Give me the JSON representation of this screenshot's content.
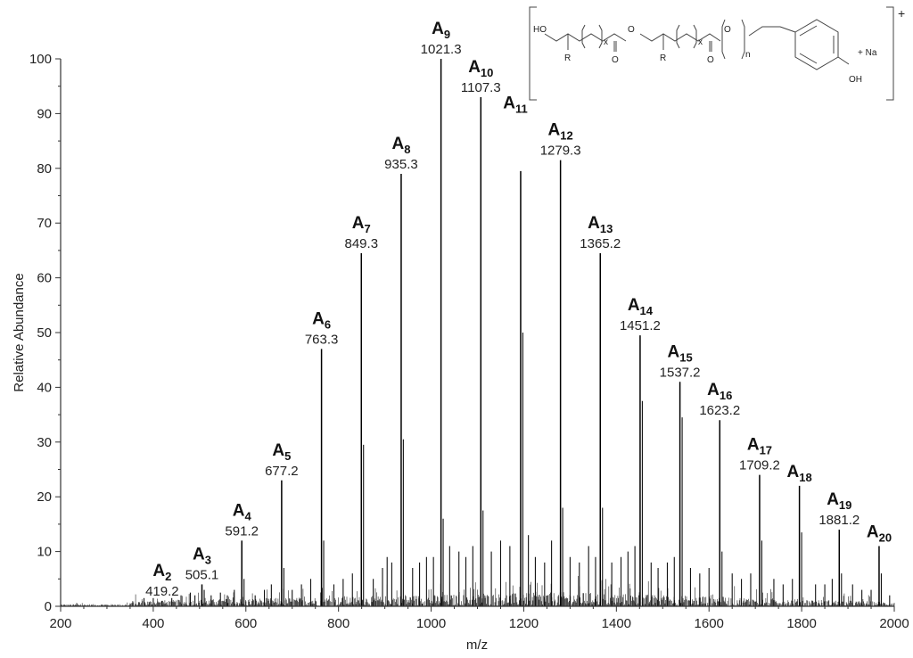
{
  "chart_data": {
    "type": "bar",
    "xlabel": "m/z",
    "ylabel": "Relative Abundance",
    "xlim": [
      200,
      2000
    ],
    "ylim": [
      0,
      100
    ],
    "xticks": [
      200,
      400,
      600,
      800,
      1000,
      1200,
      1400,
      1600,
      1800,
      2000
    ],
    "yticks": [
      0,
      10,
      20,
      30,
      40,
      50,
      60,
      70,
      80,
      90,
      100
    ],
    "grid": false,
    "peaks": [
      {
        "name": "A",
        "sub": "2",
        "mz": 419.2,
        "label": "419.2",
        "y": 1
      },
      {
        "name": "A",
        "sub": "3",
        "mz": 505.1,
        "label": "505.1",
        "y": 4
      },
      {
        "name": "A",
        "sub": "4",
        "mz": 591.2,
        "label": "591.2",
        "y": 12
      },
      {
        "name": "A",
        "sub": "5",
        "mz": 677.2,
        "label": "677.2",
        "y": 23
      },
      {
        "name": "A",
        "sub": "6",
        "mz": 763.3,
        "label": "763.3",
        "y": 47
      },
      {
        "name": "A",
        "sub": "7",
        "mz": 849.3,
        "label": "849.3",
        "y": 64.5
      },
      {
        "name": "A",
        "sub": "8",
        "mz": 935.3,
        "label": "935.3",
        "y": 79
      },
      {
        "name": "A",
        "sub": "9",
        "mz": 1021.3,
        "label": "1021.3",
        "y": 100
      },
      {
        "name": "A",
        "sub": "10",
        "mz": 1107.3,
        "label": "1107.3",
        "y": 93
      },
      {
        "name": "A",
        "sub": "11",
        "mz": 1193.3,
        "label": "",
        "y": 79.5
      },
      {
        "name": "A",
        "sub": "12",
        "mz": 1279.3,
        "label": "1279.3",
        "y": 81.5
      },
      {
        "name": "A",
        "sub": "13",
        "mz": 1365.2,
        "label": "1365.2",
        "y": 64.5
      },
      {
        "name": "A",
        "sub": "14",
        "mz": 1451.2,
        "label": "1451.2",
        "y": 49.5
      },
      {
        "name": "A",
        "sub": "15",
        "mz": 1537.2,
        "label": "1537.2",
        "y": 41
      },
      {
        "name": "A",
        "sub": "16",
        "mz": 1623.2,
        "label": "1623.2",
        "y": 34
      },
      {
        "name": "A",
        "sub": "17",
        "mz": 1709.2,
        "label": "1709.2",
        "y": 24
      },
      {
        "name": "A",
        "sub": "18",
        "mz": 1795.2,
        "label": "",
        "y": 22
      },
      {
        "name": "A",
        "sub": "19",
        "mz": 1881.2,
        "label": "1881.2",
        "y": 14
      },
      {
        "name": "A",
        "sub": "20",
        "mz": 1967.2,
        "label": "",
        "y": 11
      }
    ],
    "minor_peaks": [
      {
        "mz": 380,
        "y": 1.5
      },
      {
        "mz": 400,
        "y": 1.5
      },
      {
        "mz": 440,
        "y": 1.5
      },
      {
        "mz": 460,
        "y": 2
      },
      {
        "mz": 480,
        "y": 2.5
      },
      {
        "mz": 490,
        "y": 2
      },
      {
        "mz": 510,
        "y": 3
      },
      {
        "mz": 525,
        "y": 2
      },
      {
        "mz": 545,
        "y": 2.5
      },
      {
        "mz": 560,
        "y": 2
      },
      {
        "mz": 575,
        "y": 3
      },
      {
        "mz": 596,
        "y": 5
      },
      {
        "mz": 620,
        "y": 2
      },
      {
        "mz": 640,
        "y": 3
      },
      {
        "mz": 655,
        "y": 4
      },
      {
        "mz": 682,
        "y": 7
      },
      {
        "mz": 700,
        "y": 3
      },
      {
        "mz": 720,
        "y": 4
      },
      {
        "mz": 740,
        "y": 5
      },
      {
        "mz": 768,
        "y": 12
      },
      {
        "mz": 790,
        "y": 4
      },
      {
        "mz": 810,
        "y": 5
      },
      {
        "mz": 830,
        "y": 6
      },
      {
        "mz": 854,
        "y": 29.5
      },
      {
        "mz": 875,
        "y": 5
      },
      {
        "mz": 895,
        "y": 7
      },
      {
        "mz": 905,
        "y": 9
      },
      {
        "mz": 915,
        "y": 8
      },
      {
        "mz": 940,
        "y": 30.5
      },
      {
        "mz": 960,
        "y": 7
      },
      {
        "mz": 975,
        "y": 8
      },
      {
        "mz": 990,
        "y": 9
      },
      {
        "mz": 1005,
        "y": 9
      },
      {
        "mz": 1026,
        "y": 16
      },
      {
        "mz": 1040,
        "y": 11
      },
      {
        "mz": 1060,
        "y": 10
      },
      {
        "mz": 1075,
        "y": 9
      },
      {
        "mz": 1090,
        "y": 11
      },
      {
        "mz": 1112,
        "y": 17.5
      },
      {
        "mz": 1130,
        "y": 10
      },
      {
        "mz": 1150,
        "y": 12
      },
      {
        "mz": 1170,
        "y": 11
      },
      {
        "mz": 1198,
        "y": 50
      },
      {
        "mz": 1210,
        "y": 13
      },
      {
        "mz": 1225,
        "y": 9
      },
      {
        "mz": 1245,
        "y": 8
      },
      {
        "mz": 1260,
        "y": 12
      },
      {
        "mz": 1284,
        "y": 18
      },
      {
        "mz": 1300,
        "y": 9
      },
      {
        "mz": 1320,
        "y": 8
      },
      {
        "mz": 1340,
        "y": 11
      },
      {
        "mz": 1355,
        "y": 9
      },
      {
        "mz": 1370,
        "y": 18
      },
      {
        "mz": 1390,
        "y": 8
      },
      {
        "mz": 1410,
        "y": 9
      },
      {
        "mz": 1425,
        "y": 10
      },
      {
        "mz": 1440,
        "y": 11
      },
      {
        "mz": 1456,
        "y": 37.5
      },
      {
        "mz": 1475,
        "y": 8
      },
      {
        "mz": 1490,
        "y": 7
      },
      {
        "mz": 1510,
        "y": 8
      },
      {
        "mz": 1525,
        "y": 9
      },
      {
        "mz": 1542,
        "y": 34.5
      },
      {
        "mz": 1560,
        "y": 7
      },
      {
        "mz": 1580,
        "y": 6
      },
      {
        "mz": 1600,
        "y": 7
      },
      {
        "mz": 1628,
        "y": 10
      },
      {
        "mz": 1650,
        "y": 6
      },
      {
        "mz": 1670,
        "y": 5
      },
      {
        "mz": 1690,
        "y": 6
      },
      {
        "mz": 1714,
        "y": 12
      },
      {
        "mz": 1740,
        "y": 5
      },
      {
        "mz": 1760,
        "y": 4
      },
      {
        "mz": 1780,
        "y": 5
      },
      {
        "mz": 1800,
        "y": 13.5
      },
      {
        "mz": 1830,
        "y": 4
      },
      {
        "mz": 1850,
        "y": 4
      },
      {
        "mz": 1866,
        "y": 5
      },
      {
        "mz": 1886,
        "y": 6
      },
      {
        "mz": 1910,
        "y": 4
      },
      {
        "mz": 1930,
        "y": 3
      },
      {
        "mz": 1950,
        "y": 3
      },
      {
        "mz": 1972,
        "y": 6
      },
      {
        "mz": 1990,
        "y": 2
      }
    ]
  },
  "structure": {
    "ho_label": "HO",
    "r_label_1": "R",
    "r_label_2": "R",
    "x_label_1": "x",
    "x_label_2": "x",
    "n_label": "n",
    "o_labels": [
      "O",
      "O",
      "O",
      "O"
    ],
    "oh_label": "OH",
    "na_label": "+ Na",
    "charge": "+"
  }
}
